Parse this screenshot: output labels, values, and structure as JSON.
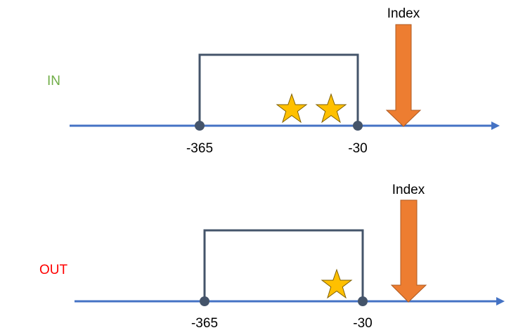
{
  "colors": {
    "timeline": "#4472C4",
    "bracket": "#44546A",
    "star_fill": "#FFC000",
    "star_stroke": "#7F6000",
    "arrow_fill": "#ED7D31",
    "arrow_stroke": "#AE5A21",
    "in_label": "#70AD47",
    "out_label": "#FF0000"
  },
  "panels": [
    {
      "side_label": "IN",
      "index_label": "Index",
      "window_start_label": "-365",
      "window_end_label": "-30",
      "stars": 2
    },
    {
      "side_label": "OUT",
      "index_label": "Index",
      "window_start_label": "-365",
      "window_end_label": "-30",
      "stars": 1
    }
  ]
}
